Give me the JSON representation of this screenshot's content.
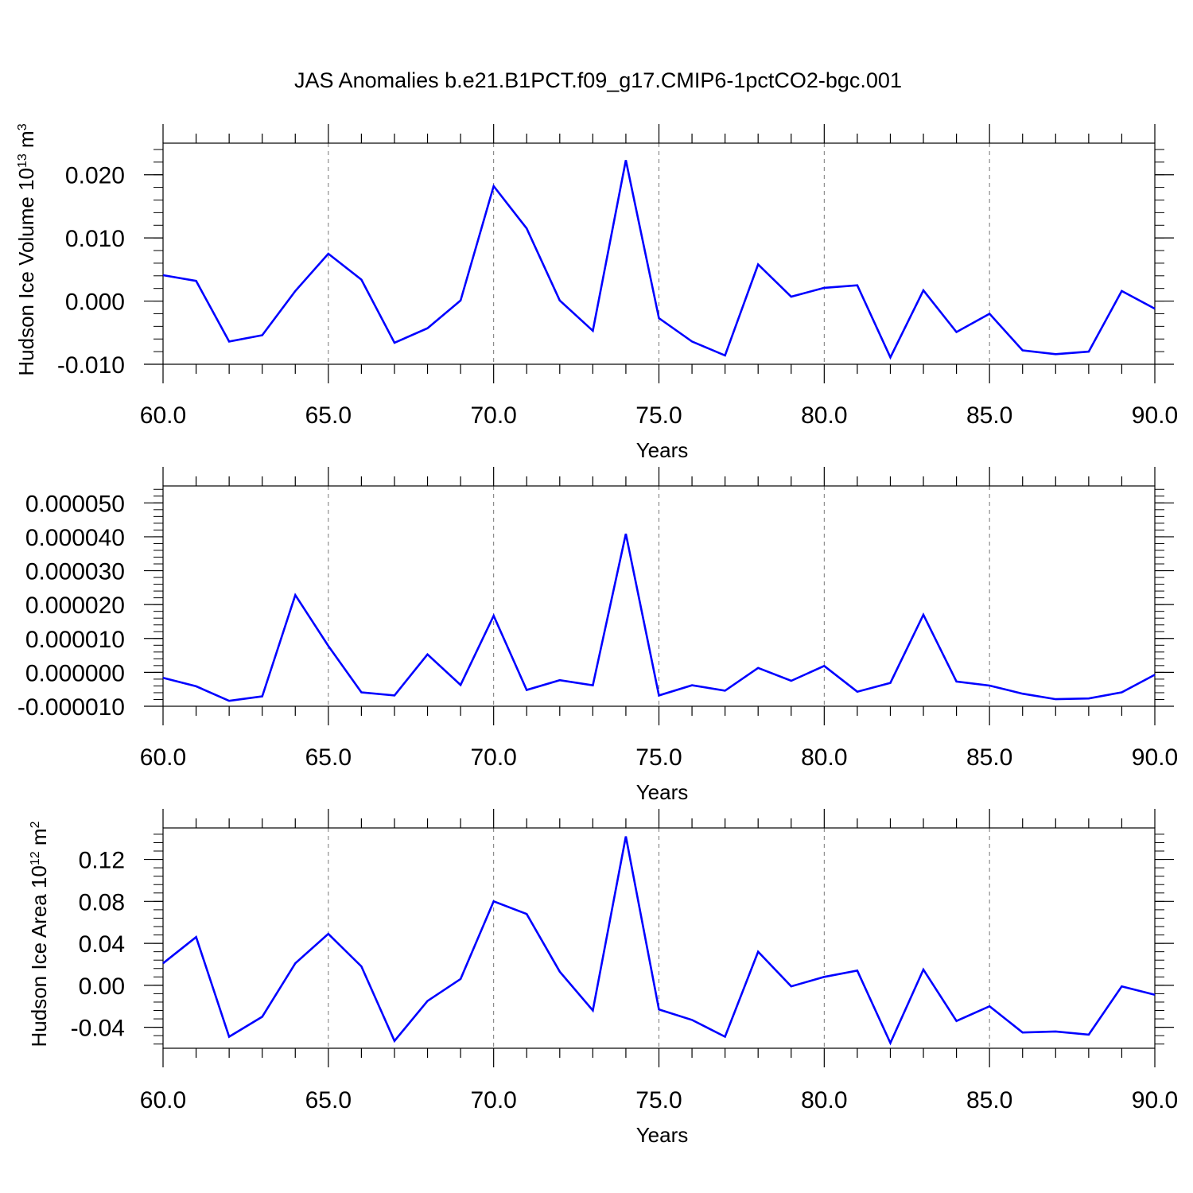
{
  "title": "JAS Anomalies b.e21.B1PCT.f09_g17.CMIP6-1pctCO2-bgc.001",
  "colors": {
    "line": "#0000ff",
    "axis": "#000000",
    "grid": "#777777"
  },
  "chart_data": [
    {
      "type": "line",
      "xlabel": "Years",
      "ylabel": {
        "text": "Hudson Ice Volume 10",
        "sup": "13",
        "unit": " m",
        "unit_sup": "3"
      },
      "xlim": [
        60,
        90
      ],
      "ylim": [
        -0.01,
        0.025
      ],
      "xticks": [
        60,
        65,
        70,
        75,
        80,
        85,
        90
      ],
      "xtick_labels": [
        "60.0",
        "65.0",
        "70.0",
        "75.0",
        "80.0",
        "85.0",
        "90.0"
      ],
      "yticks": [
        -0.01,
        0.0,
        0.01,
        0.02
      ],
      "ytick_labels": [
        "-0.010",
        "0.000",
        "0.010",
        "0.020"
      ],
      "grid_x": true,
      "x": [
        60,
        61,
        62,
        63,
        64,
        65,
        66,
        67,
        68,
        69,
        70,
        71,
        72,
        73,
        74,
        75,
        76,
        77,
        78,
        79,
        80,
        81,
        82,
        83,
        84,
        85,
        86,
        87,
        88,
        89,
        90
      ],
      "series": [
        {
          "values": [
            0.0041,
            0.0032,
            -0.0064,
            -0.0054,
            0.0016,
            0.0075,
            0.0034,
            -0.0066,
            -0.0043,
            0.0001,
            0.0182,
            0.0115,
            0.0001,
            -0.0047,
            0.0223,
            -0.0027,
            -0.0064,
            -0.0086,
            0.0058,
            0.0007,
            0.0021,
            0.0025,
            -0.0089,
            0.0017,
            -0.0049,
            -0.002,
            -0.0078,
            -0.0084,
            -0.008,
            0.0016,
            -0.0012
          ]
        }
      ]
    },
    {
      "type": "line",
      "xlabel": "Years",
      "ylabel": null,
      "xlim": [
        60,
        90
      ],
      "ylim": [
        -1e-05,
        5.5e-05
      ],
      "xticks": [
        60,
        65,
        70,
        75,
        80,
        85,
        90
      ],
      "xtick_labels": [
        "60.0",
        "65.0",
        "70.0",
        "75.0",
        "80.0",
        "85.0",
        "90.0"
      ],
      "yticks": [
        -1e-05,
        0.0,
        1e-05,
        2e-05,
        3e-05,
        4e-05,
        5e-05
      ],
      "ytick_labels": [
        "-0.000010",
        "0.000000",
        "0.000010",
        "0.000020",
        "0.000030",
        "0.000040",
        "0.000050"
      ],
      "grid_x": true,
      "x": [
        60,
        61,
        62,
        63,
        64,
        65,
        66,
        67,
        68,
        69,
        70,
        71,
        72,
        73,
        74,
        75,
        76,
        77,
        78,
        79,
        80,
        81,
        82,
        83,
        84,
        85,
        86,
        87,
        88,
        89,
        90
      ],
      "series": [
        {
          "values": [
            -1.6e-06,
            -4.1e-06,
            -8.4e-06,
            -7.1e-06,
            2.28e-05,
            7.8e-06,
            -5.9e-06,
            -6.8e-06,
            5.3e-06,
            -3.7e-06,
            1.67e-05,
            -5.2e-06,
            -2.3e-06,
            -3.8e-06,
            4.09e-05,
            -6.8e-06,
            -3.8e-06,
            -5.4e-06,
            1.3e-06,
            -2.5e-06,
            1.9e-06,
            -5.7e-06,
            -3.1e-06,
            1.7e-05,
            -2.7e-06,
            -3.9e-06,
            -6.3e-06,
            -7.9e-06,
            -7.7e-06,
            -5.9e-06,
            -7e-07
          ]
        }
      ]
    },
    {
      "type": "line",
      "xlabel": "Years",
      "ylabel": {
        "text": "Hudson Ice Area 10",
        "sup": "12",
        "unit": " m",
        "unit_sup": "2"
      },
      "xlim": [
        60,
        90
      ],
      "ylim": [
        -0.06,
        0.15
      ],
      "xticks": [
        60,
        65,
        70,
        75,
        80,
        85,
        90
      ],
      "xtick_labels": [
        "60.0",
        "65.0",
        "70.0",
        "75.0",
        "80.0",
        "85.0",
        "90.0"
      ],
      "yticks": [
        -0.04,
        0.0,
        0.04,
        0.08,
        0.12
      ],
      "ytick_labels": [
        "-0.04",
        "0.00",
        "0.04",
        "0.08",
        "0.12"
      ],
      "grid_x": true,
      "x": [
        60,
        61,
        62,
        63,
        64,
        65,
        66,
        67,
        68,
        69,
        70,
        71,
        72,
        73,
        74,
        75,
        76,
        77,
        78,
        79,
        80,
        81,
        82,
        83,
        84,
        85,
        86,
        87,
        88,
        89,
        90
      ],
      "series": [
        {
          "values": [
            0.021,
            0.046,
            -0.049,
            -0.03,
            0.021,
            0.049,
            0.018,
            -0.053,
            -0.015,
            0.006,
            0.08,
            0.068,
            0.013,
            -0.024,
            0.142,
            -0.023,
            -0.033,
            -0.049,
            0.032,
            -0.001,
            0.008,
            0.014,
            -0.055,
            0.015,
            -0.034,
            -0.02,
            -0.045,
            -0.044,
            -0.047,
            -0.001,
            -0.009
          ]
        }
      ]
    }
  ]
}
